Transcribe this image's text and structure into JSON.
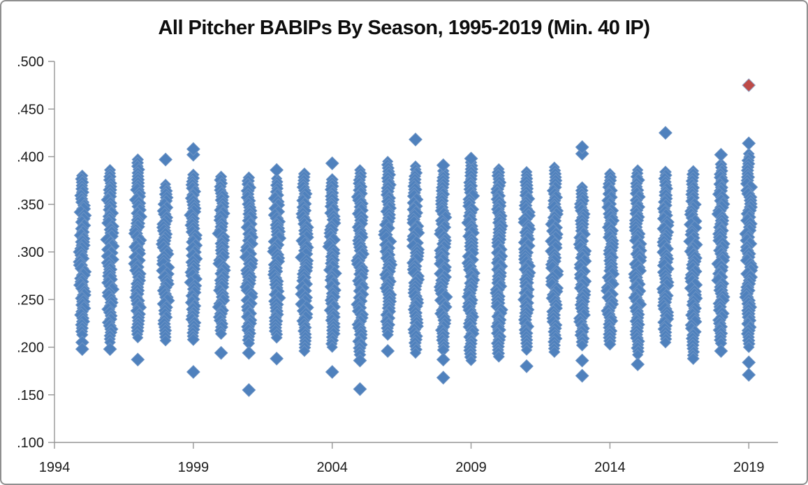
{
  "title": "All Pitcher BABIPs By Season, 1995-2019 (Min. 40 IP)",
  "colors": {
    "marker_blue": "#4F81BD",
    "marker_blue_edge": "#6C93C4",
    "marker_red": "#BE4B48",
    "marker_red_edge": "#8FA7C9",
    "axis": "#969696",
    "tick_text": "#1a1a1a",
    "frame_border": "#8f8f8f",
    "background": "#ffffff"
  },
  "chart_data": {
    "type": "scatter",
    "title": "All Pitcher BABIPs By Season, 1995-2019 (Min. 40 IP)",
    "xlabel": "",
    "ylabel": "",
    "marker": "diamond",
    "grid": false,
    "legend": "none",
    "x_range": [
      1994,
      2020
    ],
    "y_range": [
      0.1,
      0.5
    ],
    "x_ticks": [
      {
        "value": 1994,
        "label": "1994"
      },
      {
        "value": 1999,
        "label": "1999"
      },
      {
        "value": 2004,
        "label": "2004"
      },
      {
        "value": 2009,
        "label": "2009"
      },
      {
        "value": 2014,
        "label": "2014"
      },
      {
        "value": 2019,
        "label": "2019"
      }
    ],
    "y_ticks": [
      {
        "value": 0.5,
        "label": ".500"
      },
      {
        "value": 0.45,
        "label": ".450"
      },
      {
        "value": 0.4,
        "label": ".400"
      },
      {
        "value": 0.35,
        "label": ".350"
      },
      {
        "value": 0.3,
        "label": ".300"
      },
      {
        "value": 0.25,
        "label": ".250"
      },
      {
        "value": 0.2,
        "label": ".200"
      },
      {
        "value": 0.15,
        "label": ".150"
      },
      {
        "value": 0.1,
        "label": ".100"
      }
    ],
    "description": "One dense vertical strip of individual pitcher BABIP values per season (min 40 IP); dense ranges and detached outlier points estimated from the plot. One red highlighted point in 2019.",
    "columns": [
      {
        "year": 1995,
        "dense": [
          0.213,
          0.38
        ],
        "outliers_low": [
          0.205,
          0.198
        ],
        "outliers_high": []
      },
      {
        "year": 1996,
        "dense": [
          0.205,
          0.386
        ],
        "outliers_low": [
          0.198
        ],
        "outliers_high": []
      },
      {
        "year": 1997,
        "dense": [
          0.21,
          0.397
        ],
        "outliers_low": [
          0.187
        ],
        "outliers_high": []
      },
      {
        "year": 1998,
        "dense": [
          0.207,
          0.371
        ],
        "outliers_low": [],
        "outliers_high": [
          0.397
        ]
      },
      {
        "year": 1999,
        "dense": [
          0.208,
          0.381
        ],
        "outliers_low": [
          0.174
        ],
        "outliers_high": [
          0.402,
          0.408
        ]
      },
      {
        "year": 2000,
        "dense": [
          0.214,
          0.379
        ],
        "outliers_low": [
          0.194
        ],
        "outliers_high": []
      },
      {
        "year": 2001,
        "dense": [
          0.204,
          0.378
        ],
        "outliers_low": [
          0.194,
          0.155
        ],
        "outliers_high": []
      },
      {
        "year": 2002,
        "dense": [
          0.21,
          0.377
        ],
        "outliers_low": [
          0.188
        ],
        "outliers_high": [
          0.386
        ]
      },
      {
        "year": 2003,
        "dense": [
          0.196,
          0.382
        ],
        "outliers_low": [],
        "outliers_high": []
      },
      {
        "year": 2004,
        "dense": [
          0.2,
          0.376
        ],
        "outliers_low": [
          0.174
        ],
        "outliers_high": [
          0.393
        ]
      },
      {
        "year": 2005,
        "dense": [
          0.192,
          0.386
        ],
        "outliers_low": [
          0.186,
          0.156
        ],
        "outliers_high": []
      },
      {
        "year": 2006,
        "dense": [
          0.213,
          0.395
        ],
        "outliers_low": [
          0.196
        ],
        "outliers_high": []
      },
      {
        "year": 2007,
        "dense": [
          0.194,
          0.39
        ],
        "outliers_low": [],
        "outliers_high": [
          0.418
        ]
      },
      {
        "year": 2008,
        "dense": [
          0.197,
          0.385
        ],
        "outliers_low": [
          0.187,
          0.168
        ],
        "outliers_high": [
          0.391
        ]
      },
      {
        "year": 2009,
        "dense": [
          0.186,
          0.394
        ],
        "outliers_low": [],
        "outliers_high": [
          0.398
        ]
      },
      {
        "year": 2010,
        "dense": [
          0.19,
          0.387
        ],
        "outliers_low": [],
        "outliers_high": []
      },
      {
        "year": 2011,
        "dense": [
          0.197,
          0.384
        ],
        "outliers_low": [
          0.18
        ],
        "outliers_high": []
      },
      {
        "year": 2012,
        "dense": [
          0.195,
          0.389
        ],
        "outliers_low": [],
        "outliers_high": []
      },
      {
        "year": 2013,
        "dense": [
          0.202,
          0.368
        ],
        "outliers_low": [
          0.186,
          0.17
        ],
        "outliers_high": [
          0.403,
          0.41
        ]
      },
      {
        "year": 2014,
        "dense": [
          0.203,
          0.382
        ],
        "outliers_low": [],
        "outliers_high": []
      },
      {
        "year": 2015,
        "dense": [
          0.192,
          0.386
        ],
        "outliers_low": [
          0.182
        ],
        "outliers_high": []
      },
      {
        "year": 2016,
        "dense": [
          0.205,
          0.384
        ],
        "outliers_low": [],
        "outliers_high": [
          0.425
        ]
      },
      {
        "year": 2017,
        "dense": [
          0.188,
          0.385
        ],
        "outliers_low": [],
        "outliers_high": []
      },
      {
        "year": 2018,
        "dense": [
          0.204,
          0.392
        ],
        "outliers_low": [
          0.196
        ],
        "outliers_high": [
          0.402
        ]
      },
      {
        "year": 2019,
        "dense": [
          0.2,
          0.403
        ],
        "outliers_low": [
          0.184,
          0.171
        ],
        "outliers_high": [
          0.414
        ]
      }
    ],
    "highlight_point": {
      "year": 2019,
      "value": 0.475
    }
  }
}
